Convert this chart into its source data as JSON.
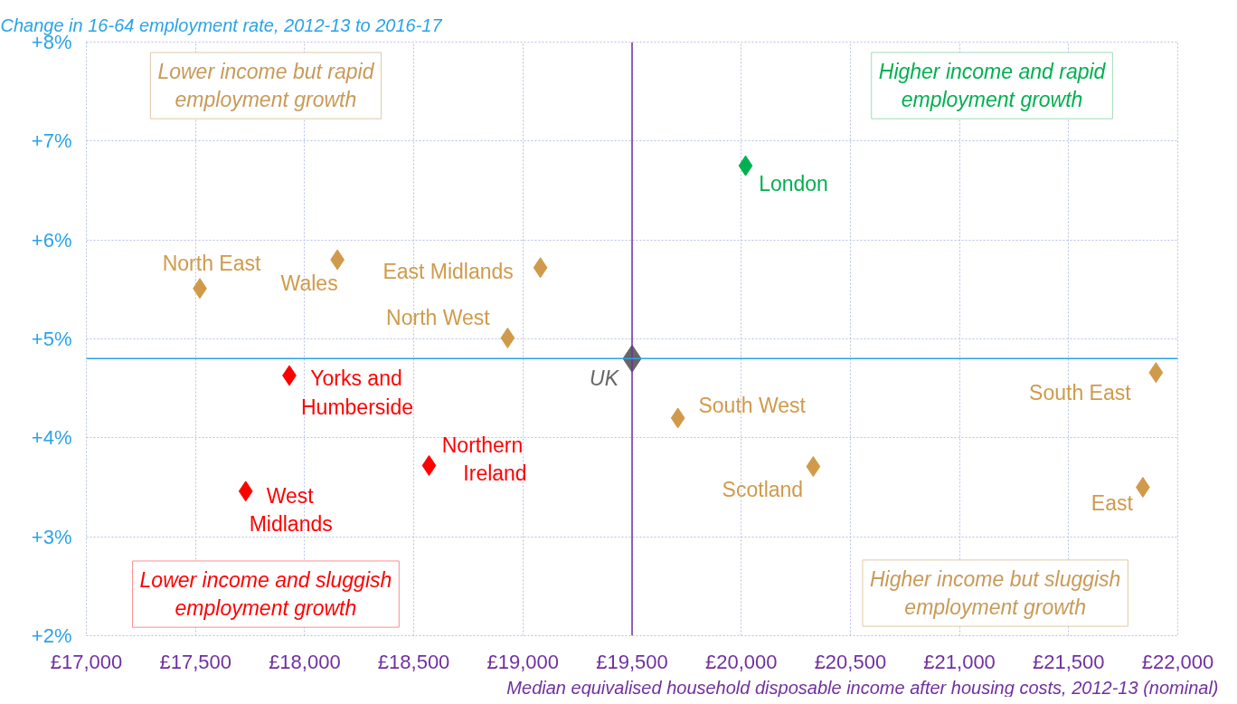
{
  "chart_data": {
    "type": "scatter",
    "title": "Change in 16-64 employment rate, 2012-13 to 2016-17",
    "xlabel": "Median equivalised household disposable income after housing costs, 2012-13 (nominal)",
    "xlim": [
      17000,
      22000
    ],
    "ylim": [
      2,
      8
    ],
    "xticks": [
      {
        "value": 17000,
        "label": "£17,000"
      },
      {
        "value": 17500,
        "label": "£17,500"
      },
      {
        "value": 18000,
        "label": "£18,000"
      },
      {
        "value": 18500,
        "label": "£18,500"
      },
      {
        "value": 19000,
        "label": "£19,000"
      },
      {
        "value": 19500,
        "label": "£19,500"
      },
      {
        "value": 20000,
        "label": "£20,000"
      },
      {
        "value": 20500,
        "label": "£20,500"
      },
      {
        "value": 21000,
        "label": "£21,000"
      },
      {
        "value": 21500,
        "label": "£21,500"
      },
      {
        "value": 22000,
        "label": "£22,000"
      }
    ],
    "yticks": [
      {
        "value": 2,
        "label": "+2%"
      },
      {
        "value": 3,
        "label": "+3%"
      },
      {
        "value": 4,
        "label": "+4%"
      },
      {
        "value": 5,
        "label": "+5%"
      },
      {
        "value": 6,
        "label": "+6%"
      },
      {
        "value": 7,
        "label": "+7%"
      },
      {
        "value": 8,
        "label": "+8%"
      }
    ],
    "grid": true,
    "marker": "diamond",
    "series": [
      {
        "name": "London",
        "color": "#00b050",
        "x": [
          20020
        ],
        "values": [
          6.75
        ]
      },
      {
        "name": "North East",
        "color": "#d09a4a",
        "x": [
          17520
        ],
        "values": [
          5.51
        ]
      },
      {
        "name": "Wales",
        "color": "#d09a4a",
        "x": [
          18150
        ],
        "values": [
          5.8
        ]
      },
      {
        "name": "East Midlands",
        "color": "#d09a4a",
        "x": [
          19080
        ],
        "values": [
          5.72
        ]
      },
      {
        "name": "North West",
        "color": "#d09a4a",
        "x": [
          18930
        ],
        "values": [
          5.01
        ]
      },
      {
        "name": "UK",
        "color": "#666666",
        "x": [
          19500
        ],
        "values": [
          4.8
        ]
      },
      {
        "name": "Yorks and Humberside",
        "color": "#ff0000",
        "x": [
          17930
        ],
        "values": [
          4.63
        ]
      },
      {
        "name": "West Midlands",
        "color": "#ff0000",
        "x": [
          17730
        ],
        "values": [
          3.46
        ]
      },
      {
        "name": "Northern Ireland",
        "color": "#ff0000",
        "x": [
          18570
        ],
        "values": [
          3.72
        ]
      },
      {
        "name": "South West",
        "color": "#d09a4a",
        "x": [
          19710
        ],
        "values": [
          4.2
        ]
      },
      {
        "name": "Scotland",
        "color": "#d09a4a",
        "x": [
          20330
        ],
        "values": [
          3.71
        ]
      },
      {
        "name": "South East",
        "color": "#d09a4a",
        "x": [
          21900
        ],
        "values": [
          4.66
        ]
      },
      {
        "name": "East",
        "color": "#d09a4a",
        "x": [
          21840
        ],
        "values": [
          3.5
        ]
      }
    ],
    "ref_lines": [
      {
        "axis": "x",
        "value": 19500,
        "color": "#7030a0"
      },
      {
        "axis": "y",
        "value": 4.8,
        "color": "#29a3e8"
      }
    ],
    "annotations": [
      "Lower income but rapid employment growth",
      "Higher income and rapid employment growth",
      "Lower income and sluggish employment growth",
      "Higher income but sluggish employment growth"
    ]
  }
}
